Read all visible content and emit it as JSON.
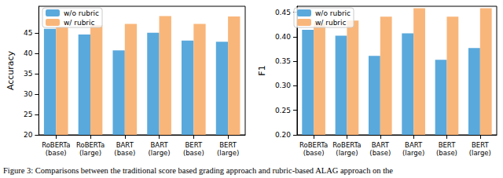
{
  "caption": "Figure 3: Comparisons between the traditional score based grading approach and rubric-based ALAG approach on the",
  "chart_data": [
    {
      "type": "bar",
      "y_label": "Accuracy",
      "categories": [
        "RoBERTa\n(base)",
        "RoBERTa\n(large)",
        "BART\n(base)",
        "BART\n(large)",
        "BERT\n(base)",
        "BERT\n(large)"
      ],
      "series": [
        {
          "name": "w/o rubric",
          "color": "#5aa9dc",
          "values": [
            46.0,
            44.6,
            40.7,
            45.0,
            43.1,
            42.8
          ]
        },
        {
          "name": "w/ rubric",
          "color": "#f9b67a",
          "values": [
            46.5,
            46.9,
            47.2,
            49.1,
            47.2,
            49.0
          ]
        }
      ],
      "ylim": [
        20,
        51.5
      ],
      "yticks": [
        20,
        25,
        30,
        35,
        40,
        45
      ],
      "legend": "upper left"
    },
    {
      "type": "bar",
      "y_label": "F1",
      "categories": [
        "RoBERTa\n(base)",
        "RoBERTa\n(large)",
        "BART\n(base)",
        "BART\n(large)",
        "BERT\n(base)",
        "BERT\n(large)"
      ],
      "series": [
        {
          "name": "w/o rubric",
          "color": "#5aa9dc",
          "values": [
            0.414,
            0.402,
            0.361,
            0.407,
            0.353,
            0.377
          ]
        },
        {
          "name": "w/ rubric",
          "color": "#f9b67a",
          "values": [
            0.428,
            0.433,
            0.441,
            0.458,
            0.441,
            0.458
          ]
        }
      ],
      "ylim": [
        0.2,
        0.462
      ],
      "yticks": [
        {
          "value": 0.2,
          "label": "0.20"
        },
        0.25,
        {
          "value": 0.3,
          "label": "0.30"
        },
        0.35,
        {
          "value": 0.4,
          "label": "0.40"
        },
        0.45
      ],
      "legend": "upper left"
    }
  ]
}
